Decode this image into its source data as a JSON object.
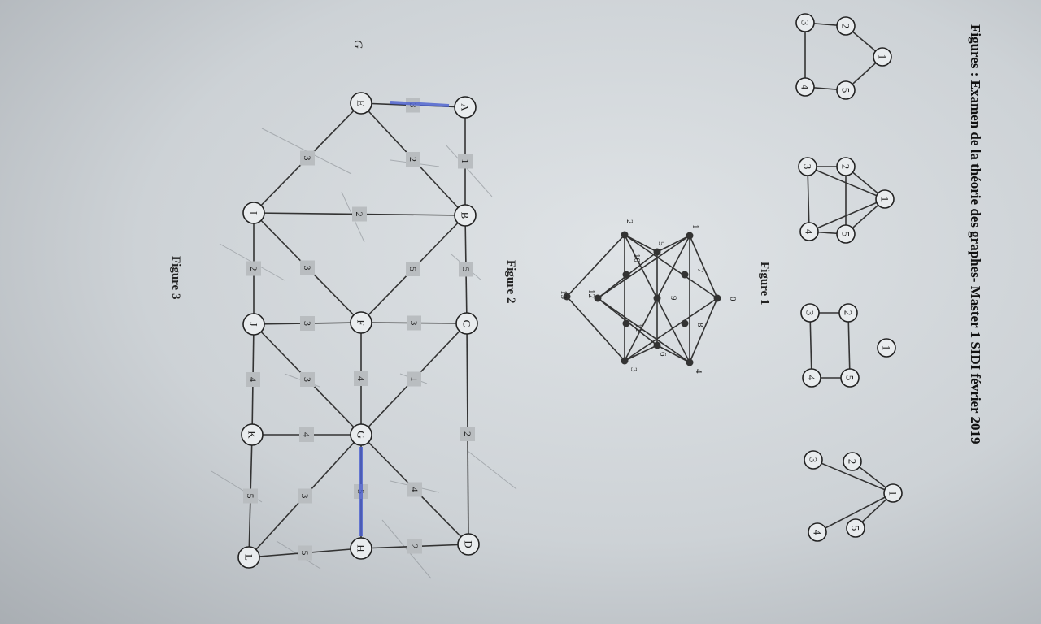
{
  "header": {
    "title": "Figures : Examen de la théorie des graphes- Master 1 SIDI février 2019"
  },
  "figure1": {
    "caption": "Figure 1",
    "graphs": [
      {
        "nodes": [
          "1",
          "2",
          "3",
          "4",
          "5"
        ]
      },
      {
        "nodes": [
          "1",
          "2",
          "3",
          "4",
          "5"
        ]
      },
      {
        "nodes": [
          "1",
          "2",
          "3",
          "4",
          "5"
        ]
      },
      {
        "nodes": [
          "1",
          "2",
          "3",
          "4",
          "5"
        ]
      }
    ]
  },
  "figure2": {
    "caption": "Figure 2",
    "nodes": [
      "0",
      "1",
      "2",
      "3",
      "4",
      "5",
      "6",
      "7",
      "8",
      "9",
      "10",
      "11",
      "12",
      "13"
    ]
  },
  "figure3": {
    "caption": "Figure 3",
    "margin_mark": "G",
    "nodes": [
      "A",
      "B",
      "C",
      "D",
      "E",
      "F",
      "G",
      "H",
      "I",
      "J",
      "K",
      "L"
    ],
    "edges": [
      {
        "from": "A",
        "to": "E",
        "w": "3"
      },
      {
        "from": "A",
        "to": "B",
        "w": "1"
      },
      {
        "from": "B",
        "to": "E",
        "w": "2"
      },
      {
        "from": "E",
        "to": "I",
        "w": "3"
      },
      {
        "from": "B",
        "to": "I",
        "w": "2"
      },
      {
        "from": "B",
        "to": "C",
        "w": "5"
      },
      {
        "from": "B",
        "to": "F",
        "w": "5"
      },
      {
        "from": "I",
        "to": "F",
        "w": "3"
      },
      {
        "from": "I",
        "to": "J",
        "w": "2"
      },
      {
        "from": "C",
        "to": "F",
        "w": "3"
      },
      {
        "from": "F",
        "to": "J",
        "w": "3"
      },
      {
        "from": "C",
        "to": "G",
        "w": "1"
      },
      {
        "from": "F",
        "to": "G",
        "w": "4"
      },
      {
        "from": "J",
        "to": "G",
        "w": "3"
      },
      {
        "from": "J",
        "to": "K",
        "w": "4"
      },
      {
        "from": "C",
        "to": "D",
        "w": "2"
      },
      {
        "from": "K",
        "to": "G",
        "w": "4"
      },
      {
        "from": "G",
        "to": "D",
        "w": "4"
      },
      {
        "from": "G",
        "to": "H",
        "w": "5"
      },
      {
        "from": "G",
        "to": "L",
        "w": "3"
      },
      {
        "from": "K",
        "to": "L",
        "w": "5"
      },
      {
        "from": "D",
        "to": "H",
        "w": "2"
      },
      {
        "from": "H",
        "to": "L",
        "w": "5"
      }
    ]
  }
}
